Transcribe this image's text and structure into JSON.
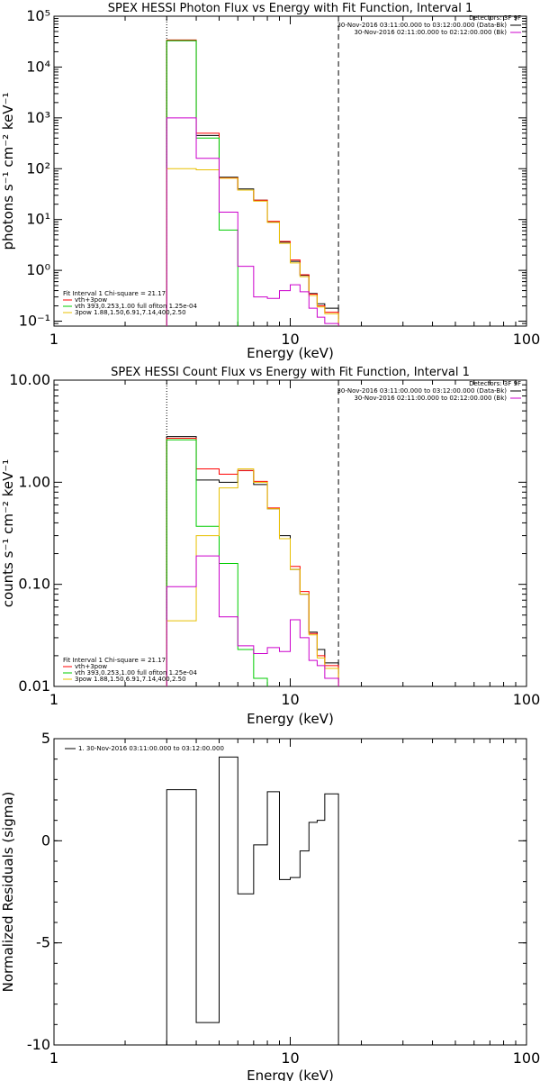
{
  "chart_data": [
    {
      "type": "line",
      "title": "SPEX HESSI Photon Flux vs Energy with Fit Function, Interval 1",
      "xlabel": "Energy (keV)",
      "ylabel": "photons s⁻¹ cm⁻² keV⁻¹",
      "xscale": "log",
      "yscale": "log",
      "xlim": [
        1,
        100
      ],
      "ylim": [
        0.08,
        100000
      ],
      "x_ticks": [
        "1",
        "10",
        "100"
      ],
      "y_ticks": [
        {
          "v": 0.1,
          "label": "10⁻¹"
        },
        {
          "v": 1,
          "label": "10⁰"
        },
        {
          "v": 10,
          "label": "10¹"
        },
        {
          "v": 100,
          "label": "10²"
        },
        {
          "v": 1000,
          "label": "10³"
        },
        {
          "v": 10000,
          "label": "10⁴"
        },
        {
          "v": 100000,
          "label": "10⁵"
        }
      ],
      "vlines": [
        {
          "x": 3.0,
          "style": "dotted"
        },
        {
          "x": 16.0,
          "style": "dashed"
        }
      ],
      "legend_top": {
        "header": "Detectors: 3F 9F",
        "entries": [
          {
            "label": "30-Nov-2016 03:11:00.000 to 03:12:00.000 (Data-Bk)",
            "color": "#000000"
          },
          {
            "label": "30-Nov-2016 02:11:00.000 to 02:12:00.000 (Bk)",
            "color": "#cc00cc"
          }
        ]
      },
      "legend_bottom": {
        "header": "Fit Interval 1    Chi-square = 21.17",
        "entries": [
          {
            "label": "vth+3pow",
            "color": "#ff0000"
          },
          {
            "label": "vth 393,0.253,1.00  full ofiton 1.25e-04",
            "color": "#00cc00"
          },
          {
            "label": "3pow 1.88,1.50,6.91,7.14,400,2.50",
            "color": "#e8c000"
          }
        ]
      },
      "edges": [
        3.0,
        4.0,
        5.0,
        6.0,
        7.0,
        8.0,
        9.0,
        10.0,
        11.0,
        12.0,
        13.0,
        14.0,
        16.0
      ],
      "series": [
        {
          "name": "Data-Bk",
          "color": "#000000",
          "values": [
            33000,
            450,
            68,
            40,
            24,
            9,
            3.6,
            1.5,
            0.8,
            0.35,
            0.22,
            0.18
          ]
        },
        {
          "name": "vth+3pow",
          "color": "#ff0000",
          "values": [
            34000,
            500,
            66,
            38,
            24,
            9.2,
            3.7,
            1.6,
            0.82,
            0.34,
            0.2,
            0.15
          ]
        },
        {
          "name": "vth",
          "color": "#00cc00",
          "values": [
            33000,
            400,
            6.2,
            0.06,
            0.06,
            0.06,
            0.06,
            0.06,
            0.06,
            0.06,
            0.06,
            0.06
          ]
        },
        {
          "name": "3pow",
          "color": "#e8c000",
          "values": [
            100,
            95,
            65,
            38,
            23,
            8.8,
            3.4,
            1.4,
            0.75,
            0.32,
            0.19,
            0.14
          ]
        },
        {
          "name": "Bk",
          "color": "#cc00cc",
          "values": [
            1000,
            160,
            14,
            1.2,
            0.3,
            0.28,
            0.4,
            0.52,
            0.38,
            0.18,
            0.12,
            0.09
          ]
        }
      ]
    },
    {
      "type": "line",
      "title": "SPEX HESSI Count Flux vs Energy with Fit Function, Interval 1",
      "xlabel": "Energy (keV)",
      "ylabel": "counts s⁻¹ cm⁻² keV⁻¹",
      "xscale": "log",
      "yscale": "log",
      "xlim": [
        1,
        100
      ],
      "ylim": [
        0.01,
        10
      ],
      "x_ticks": [
        "1",
        "10",
        "100"
      ],
      "y_ticks": [
        {
          "v": 0.01,
          "label": "0.01"
        },
        {
          "v": 0.1,
          "label": "0.10"
        },
        {
          "v": 1,
          "label": "1.00"
        },
        {
          "v": 10,
          "label": "10.00"
        }
      ],
      "vlines": [
        {
          "x": 3.0,
          "style": "dotted"
        },
        {
          "x": 16.0,
          "style": "dashed"
        }
      ],
      "legend_top": {
        "header": "Detectors: 3F 9F",
        "entries": [
          {
            "label": "30-Nov-2016 03:11:00.000 to 03:12:00.000 (Data-Bk)",
            "color": "#000000"
          },
          {
            "label": "30-Nov-2016 02:11:00.000 to 02:12:00.000 (Bk)",
            "color": "#cc00cc"
          }
        ]
      },
      "legend_bottom": {
        "header": "Fit Interval 1    Chi-square = 21.17",
        "entries": [
          {
            "label": "vth+3pow",
            "color": "#ff0000"
          },
          {
            "label": "vth 393,0.253,1.00  full ofiton 1.25e-04",
            "color": "#00cc00"
          },
          {
            "label": "3pow 1.88,1.50,6.91,7.14,400,2.50",
            "color": "#e8c000"
          }
        ]
      },
      "edges": [
        3.0,
        4.0,
        5.0,
        6.0,
        7.0,
        8.0,
        9.0,
        10.0,
        11.0,
        12.0,
        13.0,
        14.0,
        16.0
      ],
      "series": [
        {
          "name": "Data-Bk",
          "color": "#000000",
          "values": [
            2.8,
            1.05,
            1.0,
            1.3,
            0.95,
            0.55,
            0.3,
            0.14,
            0.08,
            0.034,
            0.023,
            0.017
          ]
        },
        {
          "name": "vth+3pow",
          "color": "#ff0000",
          "values": [
            2.7,
            1.35,
            1.2,
            1.3,
            1.02,
            0.56,
            0.28,
            0.15,
            0.085,
            0.033,
            0.02,
            0.016
          ]
        },
        {
          "name": "vth",
          "color": "#00cc00",
          "values": [
            2.6,
            0.37,
            0.16,
            0.023,
            0.012,
            0.008,
            0.008,
            0.008,
            0.008,
            0.008,
            0.008,
            0.008
          ]
        },
        {
          "name": "3pow",
          "color": "#e8c000",
          "values": [
            0.044,
            0.3,
            0.88,
            1.35,
            1.0,
            0.55,
            0.28,
            0.14,
            0.08,
            0.032,
            0.019,
            0.015
          ]
        },
        {
          "name": "Bk",
          "color": "#cc00cc",
          "values": [
            0.095,
            0.19,
            0.048,
            0.025,
            0.021,
            0.024,
            0.022,
            0.045,
            0.03,
            0.018,
            0.016,
            0.012
          ]
        }
      ]
    },
    {
      "type": "line",
      "title": "",
      "xlabel": "Energy (keV)",
      "ylabel": "Normalized Residuals (sigma)",
      "xscale": "log",
      "yscale": "linear",
      "xlim": [
        1,
        100
      ],
      "ylim": [
        -10,
        5
      ],
      "x_ticks": [
        "1",
        "10",
        "100"
      ],
      "y_ticks": [
        {
          "v": -10,
          "label": "-10"
        },
        {
          "v": -5,
          "label": "-5"
        },
        {
          "v": 0,
          "label": "0"
        },
        {
          "v": 5,
          "label": "5"
        }
      ],
      "legend_top": {
        "header": "",
        "entries": [
          {
            "label": "1. 30-Nov-2016 03:11:00.000 to 03:12:00.000",
            "color": "#000000"
          }
        ]
      },
      "edges": [
        3.0,
        4.0,
        5.0,
        6.0,
        7.0,
        8.0,
        9.0,
        10.0,
        11.0,
        12.0,
        13.0,
        14.0,
        16.0
      ],
      "series": [
        {
          "name": "1",
          "color": "#000000",
          "values": [
            2.5,
            -8.9,
            4.1,
            -2.6,
            -0.2,
            2.4,
            -1.9,
            -1.8,
            -0.5,
            0.9,
            1.0,
            2.3
          ]
        }
      ]
    }
  ]
}
